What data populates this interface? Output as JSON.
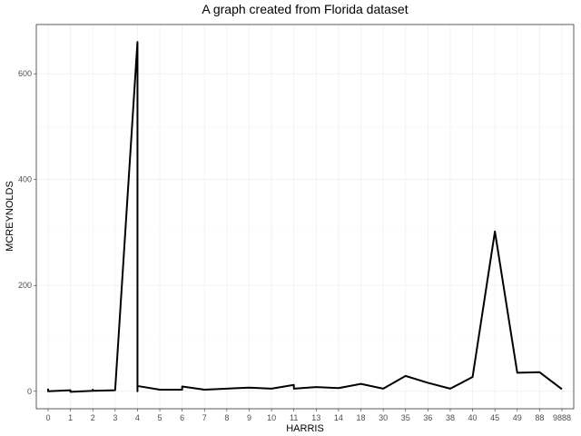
{
  "chart_data": {
    "type": "line",
    "title": "A graph created from Florida dataset",
    "xlabel": "HARRIS",
    "ylabel": "MCREYNOLDS",
    "categories": [
      "0",
      "1",
      "2",
      "3",
      "4",
      "5",
      "6",
      "7",
      "8",
      "9",
      "10",
      "11",
      "13",
      "14",
      "18",
      "30",
      "35",
      "36",
      "38",
      "40",
      "45",
      "49",
      "88",
      "9888"
    ],
    "points": [
      {
        "x": "0",
        "y": 5
      },
      {
        "x": "0",
        "y": 0
      },
      {
        "x": "1",
        "y": 2
      },
      {
        "x": "1",
        "y": -1
      },
      {
        "x": "2",
        "y": 1
      },
      {
        "x": "2",
        "y": 3
      },
      {
        "x": "2",
        "y": 1
      },
      {
        "x": "3",
        "y": 2
      },
      {
        "x": "4",
        "y": 660
      },
      {
        "x": "4",
        "y": 0
      },
      {
        "x": "4",
        "y": 10
      },
      {
        "x": "5",
        "y": 3
      },
      {
        "x": "6",
        "y": 3
      },
      {
        "x": "6",
        "y": 9
      },
      {
        "x": "7",
        "y": 3
      },
      {
        "x": "8",
        "y": 5
      },
      {
        "x": "9",
        "y": 7
      },
      {
        "x": "10",
        "y": 5
      },
      {
        "x": "11",
        "y": 12
      },
      {
        "x": "11",
        "y": 5
      },
      {
        "x": "13",
        "y": 8
      },
      {
        "x": "14",
        "y": 6
      },
      {
        "x": "18",
        "y": 14
      },
      {
        "x": "30",
        "y": 5
      },
      {
        "x": "35",
        "y": 29
      },
      {
        "x": "36",
        "y": 16
      },
      {
        "x": "38",
        "y": 5
      },
      {
        "x": "40",
        "y": 27
      },
      {
        "x": "45",
        "y": 302
      },
      {
        "x": "49",
        "y": 35
      },
      {
        "x": "88",
        "y": 36
      },
      {
        "x": "9888",
        "y": 4
      }
    ],
    "yticks": [
      0,
      200,
      400,
      600
    ],
    "ylim": [
      -33,
      693
    ],
    "grid": true,
    "legend": "none",
    "line_color": "#000000"
  }
}
